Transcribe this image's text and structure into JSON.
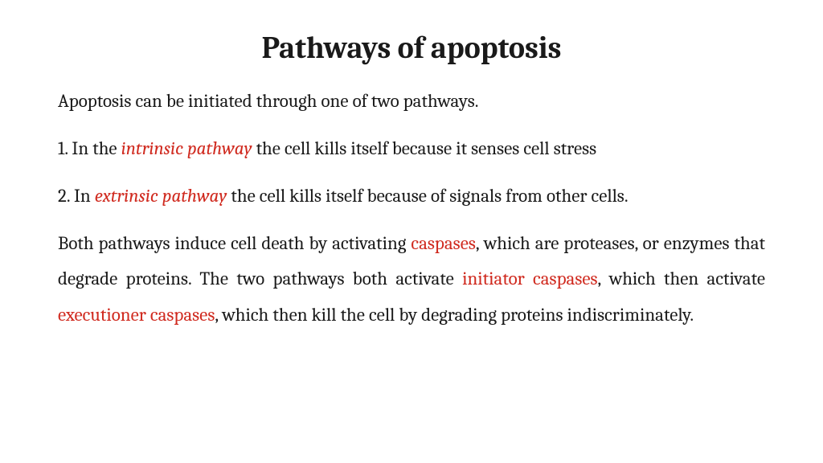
{
  "colors": {
    "background": "#ffffff",
    "text": "#1a1a1a",
    "highlight": "#d02a1f"
  },
  "typography": {
    "title_fontsize": 38,
    "title_weight": 700,
    "body_fontsize": 23,
    "body_lineheight": 1.95,
    "font_family": "Cambria/Georgia serif",
    "body_align": "justify"
  },
  "title": "Pathways of apoptosis",
  "intro": "Apoptosis can be initiated through one of two pathways.",
  "item1": {
    "pre": "1. In the ",
    "hl": "intrinsic pathway",
    "post": " the cell kills itself because it senses cell stress"
  },
  "item2": {
    "pre": "2. In ",
    "hl": "extrinsic pathway",
    "post": " the cell kills itself because of signals from other cells."
  },
  "body": {
    "s1": "Both pathways induce cell death by activating ",
    "hl1": "caspases",
    "s2": ", which are proteases, or enzymes that degrade proteins. The two pathways both activate ",
    "hl2": "initiator caspases",
    "s3": ", which then activate ",
    "hl3": "executioner caspases",
    "s4": ", which then kill the cell by degrading proteins indiscriminately."
  }
}
